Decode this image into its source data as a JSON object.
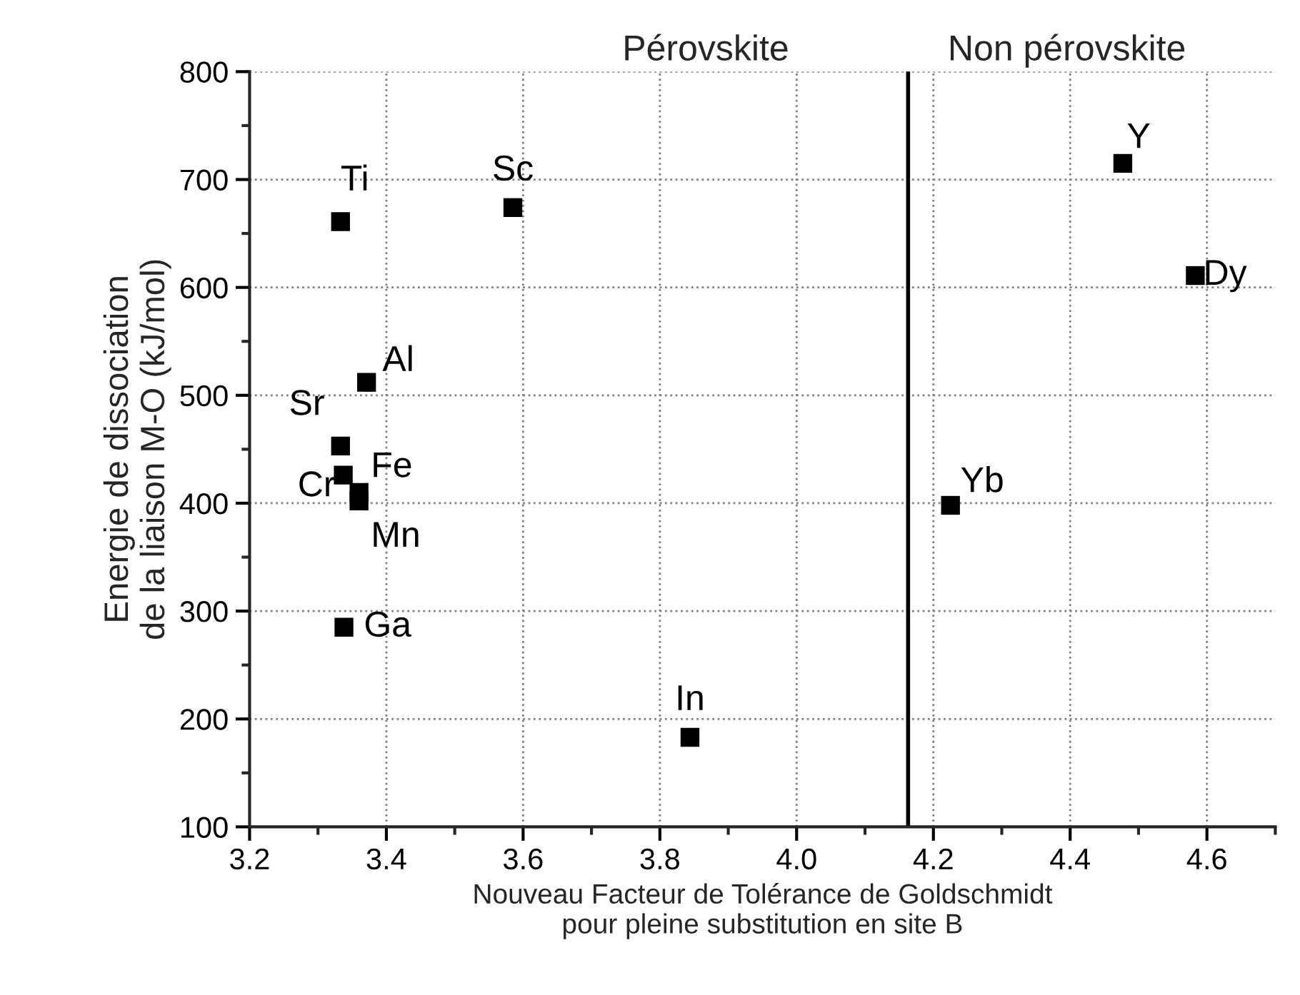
{
  "chart_data": {
    "type": "scatter",
    "xlabel": "Nouveau Facteur de Tolérance de Goldschmidt\npour pleine substitution en site B",
    "ylabel": "Energie de dissociation\nde la liaison M-O (kJ/mol)",
    "x": [
      3.333,
      3.585,
      3.371,
      3.333,
      3.337,
      3.36,
      3.36,
      3.338,
      3.844,
      4.225,
      4.477,
      4.583
    ],
    "series": [
      {
        "color": "#000000",
        "values": [
          661,
          674,
          512,
          453,
          426,
          410,
          402,
          285,
          183,
          398,
          715,
          611
        ]
      }
    ],
    "marker": "square",
    "xlim": [
      3.2,
      4.7
    ],
    "xticks": [
      {
        "value": 3.2,
        "label": "3.2"
      },
      {
        "value": 3.4,
        "label": "3.4"
      },
      {
        "value": 3.6,
        "label": "3.6"
      },
      {
        "value": 3.8,
        "label": "3.8"
      },
      {
        "value": 4.0,
        "label": "4.0"
      },
      {
        "value": 4.2,
        "label": "4.2"
      },
      {
        "value": 4.4,
        "label": "4.4"
      },
      {
        "value": 4.6,
        "label": "4.6"
      }
    ],
    "ylim": [
      100,
      800
    ],
    "yticks": [
      100,
      200,
      300,
      400,
      500,
      600,
      700,
      800
    ],
    "grid": true,
    "ref_lines": [
      {
        "axis": "x",
        "value": 4.163,
        "color": "#000000",
        "line_style": "solid"
      }
    ],
    "annotations": [
      {
        "text": "Ti",
        "x": 3.333,
        "y": 661
      },
      {
        "text": "Sc",
        "x": 3.585,
        "y": 674
      },
      {
        "text": "Al",
        "x": 3.371,
        "y": 512
      },
      {
        "text": "Sr",
        "x": 3.333,
        "y": 453
      },
      {
        "text": "Cr",
        "x": 3.337,
        "y": 426
      },
      {
        "text": "Fe",
        "x": 3.36,
        "y": 410
      },
      {
        "text": "Mn",
        "x": 3.36,
        "y": 402
      },
      {
        "text": "Ga",
        "x": 3.338,
        "y": 285
      },
      {
        "text": "In",
        "x": 3.844,
        "y": 183
      },
      {
        "text": "Yb",
        "x": 4.225,
        "y": 398
      },
      {
        "text": "Y",
        "x": 4.477,
        "y": 715
      },
      {
        "text": "Dy",
        "x": 4.583,
        "y": 611
      },
      "Pérovskite",
      "Non pérovskite"
    ]
  }
}
